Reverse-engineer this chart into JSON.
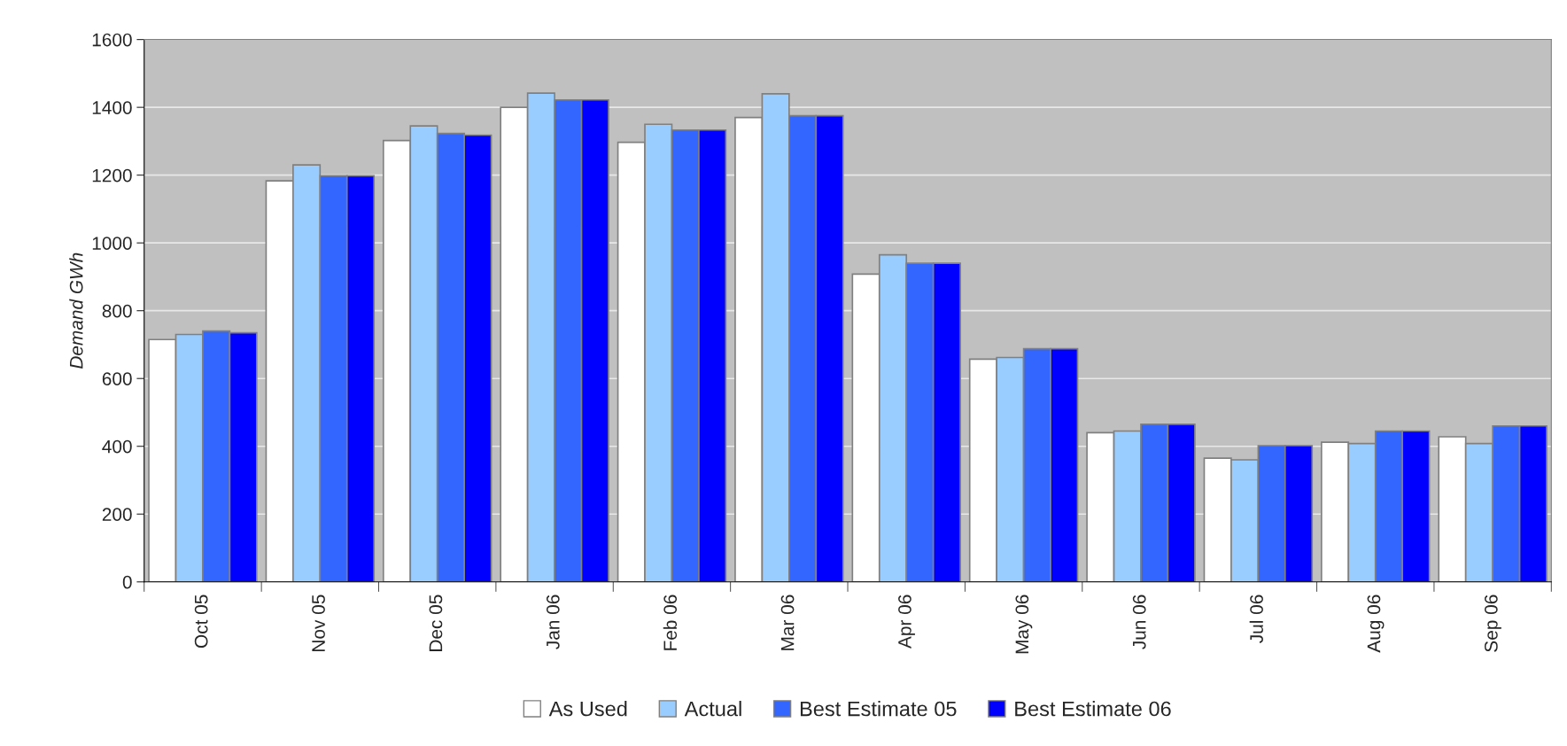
{
  "chart_data": {
    "type": "bar",
    "ylabel": "Demand GWh",
    "categories": [
      "Oct 05",
      "Nov 05",
      "Dec 05",
      "Jan 06",
      "Feb 06",
      "Mar 06",
      "Apr 06",
      "May 06",
      "Jun 06",
      "Jul 06",
      "Aug 06",
      "Sep 06"
    ],
    "series": [
      {
        "name": "As Used",
        "color": "#ffffff",
        "values": [
          715,
          1183,
          1302,
          1400,
          1297,
          1370,
          908,
          657,
          440,
          365,
          412,
          428
        ]
      },
      {
        "name": "Actual",
        "color": "#99ccff",
        "values": [
          730,
          1230,
          1345,
          1442,
          1350,
          1440,
          965,
          662,
          445,
          360,
          408,
          408
        ]
      },
      {
        "name": "Best Estimate 05",
        "color": "#3366ff",
        "values": [
          740,
          1198,
          1323,
          1422,
          1333,
          1375,
          940,
          688,
          465,
          402,
          445,
          460
        ]
      },
      {
        "name": "Best Estimate 06",
        "color": "#0000ff",
        "values": [
          735,
          1198,
          1318,
          1422,
          1333,
          1375,
          940,
          688,
          465,
          402,
          445,
          460
        ]
      }
    ],
    "ylim": [
      0,
      1600
    ],
    "yticks": [
      0,
      200,
      400,
      600,
      800,
      1000,
      1200,
      1400,
      1600
    ],
    "grid": "y",
    "legend": "bottom"
  }
}
